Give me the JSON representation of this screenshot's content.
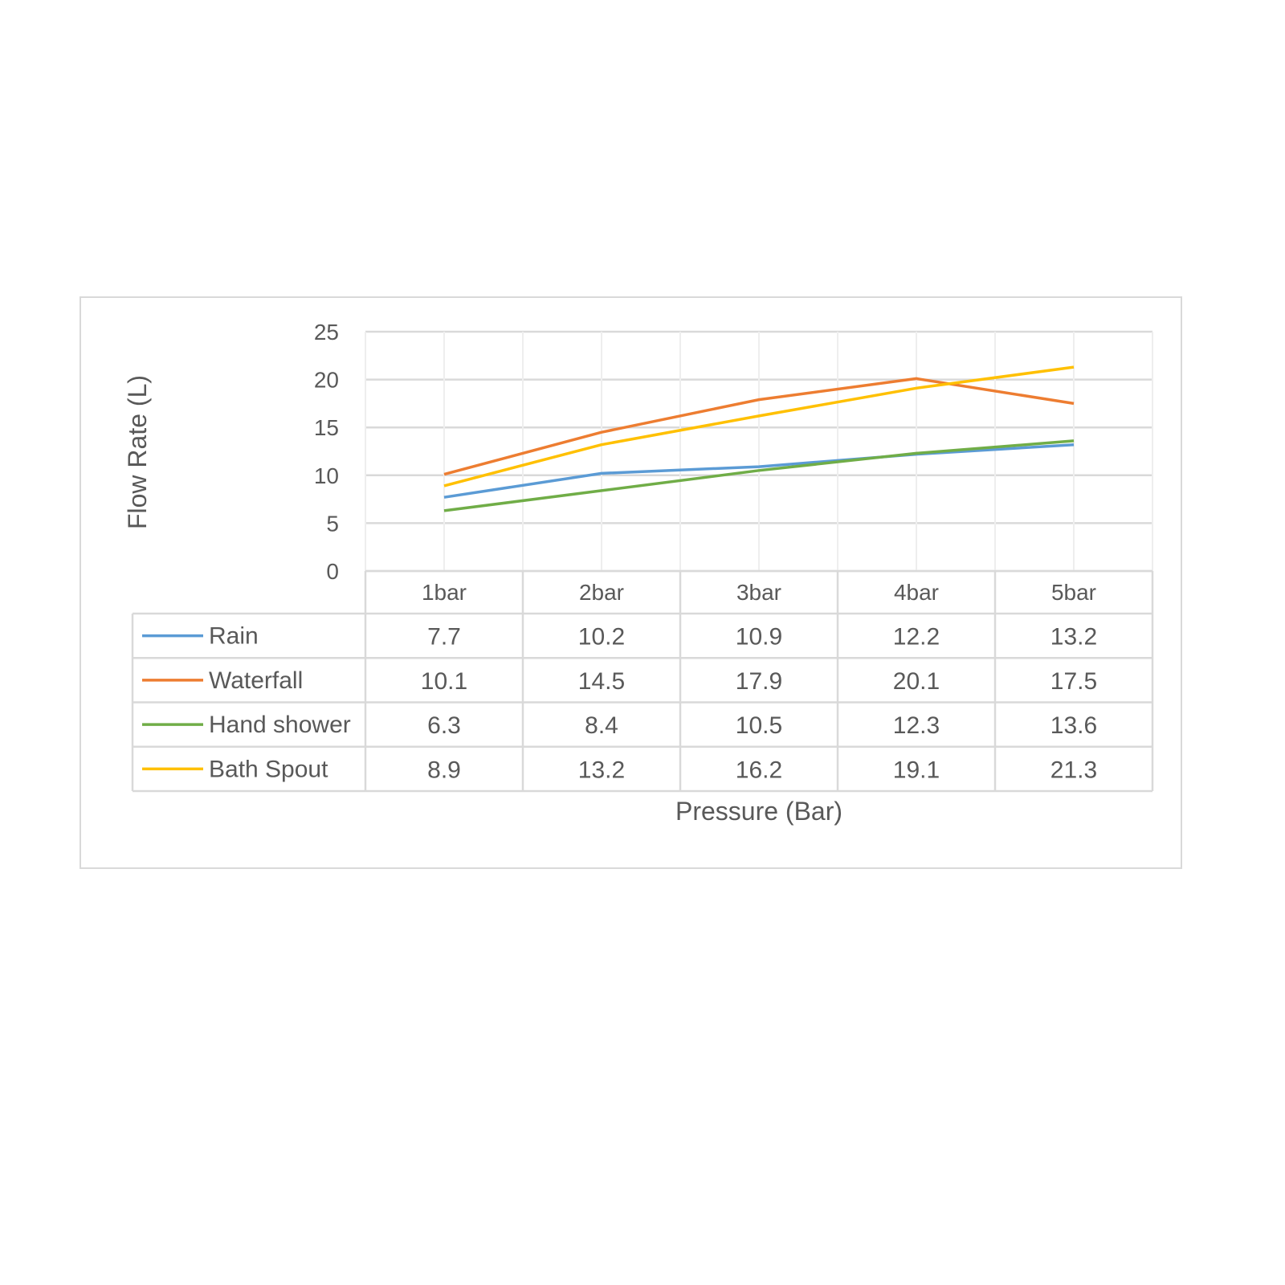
{
  "chart_data": {
    "type": "line",
    "title": "",
    "xlabel": "Pressure (Bar)",
    "ylabel": "Flow Rate (L)",
    "ylim": [
      0,
      25
    ],
    "yticks": [
      "0",
      "5",
      "10",
      "15",
      "20",
      "25"
    ],
    "categories": [
      "1bar",
      "2bar",
      "3bar",
      "4bar",
      "5bar"
    ],
    "grid": true,
    "legend": "data-table",
    "series": [
      {
        "name": "Rain",
        "color": "#5b9bd5",
        "values": [
          7.7,
          10.2,
          10.9,
          12.2,
          13.2
        ]
      },
      {
        "name": "Waterfall",
        "color": "#ed7d31",
        "values": [
          10.1,
          14.5,
          17.9,
          20.1,
          17.5
        ]
      },
      {
        "name": "Hand shower",
        "color": "#70ad47",
        "values": [
          6.3,
          8.4,
          10.5,
          12.3,
          13.6
        ]
      },
      {
        "name": "Bath Spout",
        "color": "#ffc000",
        "values": [
          8.9,
          13.2,
          16.2,
          19.1,
          21.3
        ]
      }
    ]
  }
}
